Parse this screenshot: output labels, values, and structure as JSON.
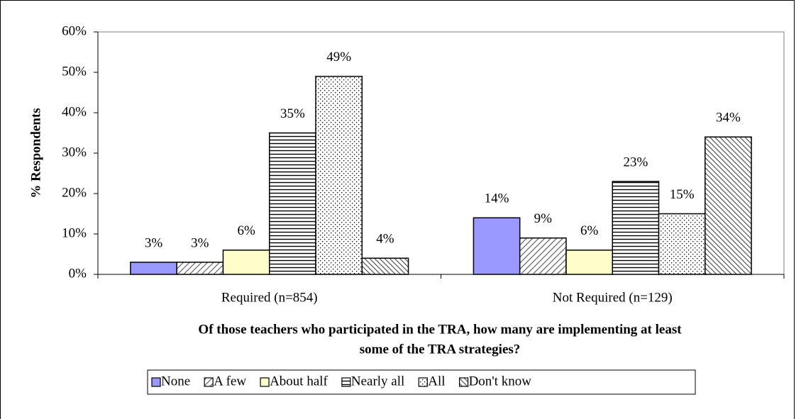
{
  "chart_data": {
    "type": "bar",
    "ylabel": "% Respondents",
    "xlabel": [
      "Of those teachers who participated in the TRA, how many are implementing at least",
      "some of the TRA strategies?"
    ],
    "categories": [
      "Required (n=854)",
      "Not Required (n=129)"
    ],
    "series": [
      {
        "name": "None",
        "color": "#9999ff",
        "pattern": "solid",
        "values": [
          3,
          14
        ],
        "value_labels": [
          "3%",
          "14%"
        ]
      },
      {
        "name": "A few",
        "color": "#ffffff",
        "pattern": "diagonal-up",
        "values": [
          3,
          9
        ],
        "value_labels": [
          "3%",
          "9%"
        ]
      },
      {
        "name": "About half",
        "color": "#ffffcc",
        "pattern": "solid",
        "values": [
          6,
          6
        ],
        "value_labels": [
          "6%",
          "6%"
        ]
      },
      {
        "name": "Nearly all",
        "color": "#ffffff",
        "pattern": "horizontal",
        "values": [
          35,
          23
        ],
        "value_labels": [
          "35%",
          "23%"
        ]
      },
      {
        "name": "All",
        "color": "#ffffff",
        "pattern": "dots",
        "values": [
          49,
          15
        ],
        "value_labels": [
          "49%",
          "15%"
        ]
      },
      {
        "name": "Don't know",
        "color": "#ffffff",
        "pattern": "diagonal-down",
        "values": [
          4,
          34
        ],
        "value_labels": [
          "4%",
          "34%"
        ]
      }
    ],
    "ylim": [
      0,
      60
    ],
    "yticks": [
      {
        "value": 0,
        "label": "0%"
      },
      {
        "value": 10,
        "label": "10%"
      },
      {
        "value": 20,
        "label": "20%"
      },
      {
        "value": 30,
        "label": "30%"
      },
      {
        "value": 40,
        "label": "40%"
      },
      {
        "value": 50,
        "label": "50%"
      },
      {
        "value": 60,
        "label": "60%"
      }
    ],
    "grid": false,
    "legend": "bottom"
  }
}
